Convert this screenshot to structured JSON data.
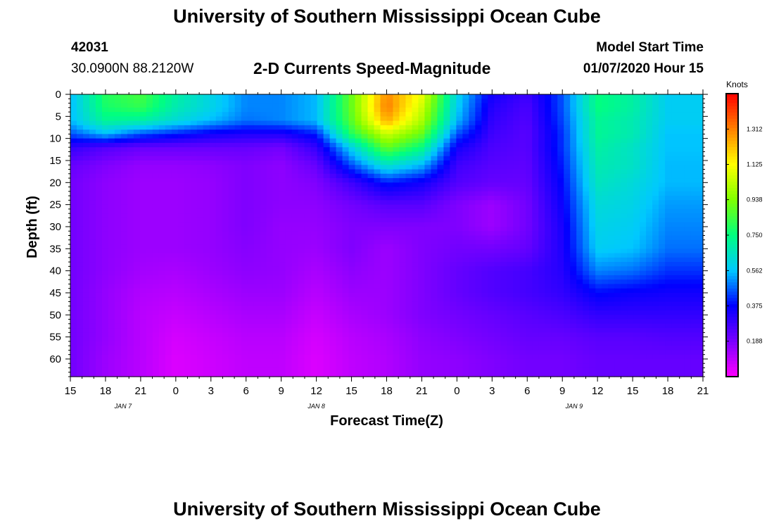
{
  "header": {
    "title_top": "University of Southern Mississippi Ocean Cube",
    "title_bottom": "University of Southern Mississippi Ocean Cube",
    "station_id": "42031",
    "station_coords": "30.0900N 88.2120W",
    "model_start_label": "Model Start Time",
    "model_start_value": "01/07/2020 Hour 15"
  },
  "chart_data": {
    "type": "heatmap",
    "title": "2-D Currents Speed-Magnitude",
    "xlabel": "Forecast Time(Z)",
    "ylabel": "Depth (ft)",
    "x_tick_labels": [
      "15",
      "18",
      "21",
      "0",
      "3",
      "6",
      "9",
      "12",
      "15",
      "18",
      "21",
      "0",
      "3",
      "6",
      "9",
      "12",
      "15",
      "18",
      "21"
    ],
    "x_hours": [
      0,
      3,
      6,
      9,
      12,
      15,
      18,
      21,
      24,
      27,
      30,
      33,
      36,
      39,
      42,
      45,
      48,
      51,
      54
    ],
    "date_labels": [
      {
        "label": "JAN  7",
        "hour": 4.5
      },
      {
        "label": "JAN  8",
        "hour": 21
      },
      {
        "label": "JAN  9",
        "hour": 43
      }
    ],
    "y_ticks": [
      0,
      5,
      10,
      15,
      20,
      25,
      30,
      35,
      40,
      45,
      50,
      55,
      60
    ],
    "ylim": [
      0,
      64
    ],
    "y_inverted": true,
    "colorbar": {
      "title": "Knots",
      "min": 0,
      "max": 1.5,
      "ticks": [
        "0.188",
        "0.375",
        "0.562",
        "0.750",
        "0.938",
        "1.125",
        "1.312"
      ],
      "tick_values": [
        0.188,
        0.375,
        0.562,
        0.75,
        0.938,
        1.125,
        1.312
      ],
      "colors": [
        "#ff00ff",
        "#7a00ff",
        "#0000ff",
        "#00c8ff",
        "#00ff80",
        "#80ff00",
        "#ffff00",
        "#ff8000",
        "#ff0000"
      ]
    },
    "grid_depths": [
      0,
      3,
      6,
      9,
      12,
      16,
      20,
      25,
      30,
      35,
      40,
      45,
      50,
      55,
      60,
      64
    ],
    "grid_times": [
      0,
      3,
      6,
      9,
      12,
      15,
      18,
      21,
      24,
      27,
      30,
      33,
      36,
      39,
      42,
      45,
      48,
      51,
      54
    ],
    "speeds": [
      [
        0.55,
        0.8,
        0.85,
        0.7,
        0.6,
        0.5,
        0.5,
        0.55,
        0.9,
        1.3,
        1.1,
        0.6,
        0.35,
        0.28,
        0.45,
        0.75,
        0.7,
        0.58,
        0.58
      ],
      [
        0.55,
        0.78,
        0.82,
        0.68,
        0.6,
        0.5,
        0.5,
        0.55,
        0.9,
        1.32,
        1.05,
        0.58,
        0.32,
        0.26,
        0.45,
        0.75,
        0.7,
        0.58,
        0.58
      ],
      [
        0.55,
        0.72,
        0.7,
        0.62,
        0.55,
        0.48,
        0.5,
        0.55,
        0.88,
        1.25,
        1.0,
        0.55,
        0.3,
        0.25,
        0.44,
        0.72,
        0.68,
        0.58,
        0.58
      ],
      [
        0.45,
        0.55,
        0.45,
        0.4,
        0.35,
        0.33,
        0.33,
        0.4,
        0.8,
        1.05,
        0.9,
        0.45,
        0.28,
        0.24,
        0.42,
        0.72,
        0.68,
        0.56,
        0.56
      ],
      [
        0.3,
        0.25,
        0.22,
        0.22,
        0.22,
        0.22,
        0.2,
        0.3,
        0.6,
        0.9,
        0.75,
        0.35,
        0.26,
        0.24,
        0.42,
        0.7,
        0.65,
        0.56,
        0.56
      ],
      [
        0.22,
        0.18,
        0.15,
        0.15,
        0.16,
        0.18,
        0.16,
        0.22,
        0.45,
        0.65,
        0.55,
        0.28,
        0.24,
        0.23,
        0.4,
        0.68,
        0.65,
        0.55,
        0.55
      ],
      [
        0.2,
        0.16,
        0.14,
        0.14,
        0.15,
        0.18,
        0.16,
        0.18,
        0.28,
        0.4,
        0.35,
        0.25,
        0.22,
        0.22,
        0.38,
        0.66,
        0.62,
        0.55,
        0.55
      ],
      [
        0.2,
        0.16,
        0.14,
        0.14,
        0.15,
        0.18,
        0.16,
        0.16,
        0.2,
        0.24,
        0.24,
        0.18,
        0.14,
        0.2,
        0.36,
        0.62,
        0.6,
        0.52,
        0.52
      ],
      [
        0.2,
        0.16,
        0.14,
        0.14,
        0.15,
        0.18,
        0.15,
        0.15,
        0.18,
        0.18,
        0.18,
        0.18,
        0.14,
        0.2,
        0.34,
        0.6,
        0.58,
        0.5,
        0.5
      ],
      [
        0.2,
        0.16,
        0.14,
        0.14,
        0.15,
        0.17,
        0.15,
        0.14,
        0.18,
        0.14,
        0.18,
        0.2,
        0.2,
        0.22,
        0.33,
        0.58,
        0.56,
        0.48,
        0.48
      ],
      [
        0.2,
        0.16,
        0.13,
        0.12,
        0.14,
        0.16,
        0.15,
        0.12,
        0.16,
        0.14,
        0.18,
        0.22,
        0.25,
        0.27,
        0.32,
        0.5,
        0.48,
        0.42,
        0.42
      ],
      [
        0.2,
        0.15,
        0.11,
        0.1,
        0.12,
        0.14,
        0.14,
        0.1,
        0.14,
        0.14,
        0.18,
        0.22,
        0.25,
        0.27,
        0.3,
        0.38,
        0.36,
        0.35,
        0.35
      ],
      [
        0.2,
        0.15,
        0.1,
        0.08,
        0.1,
        0.12,
        0.12,
        0.08,
        0.12,
        0.14,
        0.18,
        0.2,
        0.22,
        0.24,
        0.26,
        0.3,
        0.3,
        0.3,
        0.3
      ],
      [
        0.2,
        0.15,
        0.1,
        0.06,
        0.08,
        0.1,
        0.1,
        0.06,
        0.1,
        0.12,
        0.16,
        0.18,
        0.2,
        0.22,
        0.22,
        0.24,
        0.24,
        0.25,
        0.25
      ],
      [
        0.2,
        0.14,
        0.1,
        0.05,
        0.07,
        0.09,
        0.09,
        0.05,
        0.09,
        0.11,
        0.15,
        0.16,
        0.18,
        0.2,
        0.2,
        0.22,
        0.22,
        0.22,
        0.22
      ],
      [
        0.2,
        0.14,
        0.1,
        0.05,
        0.07,
        0.09,
        0.09,
        0.05,
        0.09,
        0.11,
        0.15,
        0.16,
        0.18,
        0.2,
        0.2,
        0.22,
        0.22,
        0.22,
        0.22
      ]
    ]
  }
}
